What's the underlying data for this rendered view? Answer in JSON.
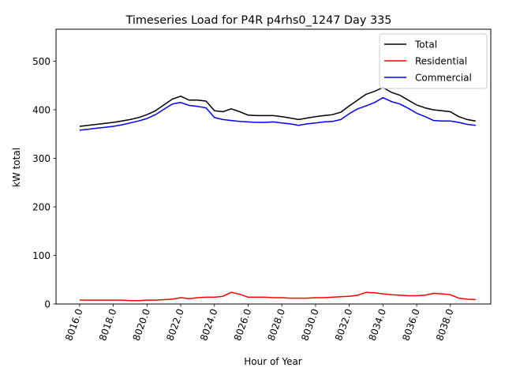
{
  "chart_data": {
    "type": "line",
    "title": "Timeseries Load for P4R p4rhs0_1247  Day 335",
    "xlabel": "Hour of Year",
    "ylabel": "kW total",
    "xlim": [
      8014.6,
      8040.4
    ],
    "ylim": [
      0,
      566
    ],
    "x_ticks": [
      8016,
      8018,
      8020,
      8022,
      8024,
      8026,
      8028,
      8030,
      8032,
      8034,
      8036,
      8038
    ],
    "x_tick_labels": [
      "8016.0",
      "8018.0",
      "8020.0",
      "8022.0",
      "8024.0",
      "8026.0",
      "8028.0",
      "8030.0",
      "8032.0",
      "8034.0",
      "8036.0",
      "8038.0"
    ],
    "y_ticks": [
      0,
      100,
      200,
      300,
      400,
      500
    ],
    "y_tick_labels": [
      "0",
      "100",
      "200",
      "300",
      "400",
      "500"
    ],
    "legend_position": "top-right",
    "x": [
      8016.0,
      8016.5,
      8017.0,
      8017.5,
      8018.0,
      8018.5,
      8019.0,
      8019.5,
      8020.0,
      8020.5,
      8021.0,
      8021.5,
      8022.0,
      8022.5,
      8023.0,
      8023.5,
      8024.0,
      8024.5,
      8025.0,
      8025.5,
      8026.0,
      8026.5,
      8027.0,
      8027.5,
      8028.0,
      8028.5,
      8029.0,
      8029.5,
      8030.0,
      8030.5,
      8031.0,
      8031.5,
      8032.0,
      8032.5,
      8033.0,
      8033.5,
      8034.0,
      8034.5,
      8035.0,
      8035.5,
      8036.0,
      8036.5,
      8037.0,
      8037.5,
      8038.0,
      8038.5,
      8039.0,
      8039.5
    ],
    "series": [
      {
        "name": "Total",
        "color": "#000000",
        "values": [
          366,
          368,
          370,
          372,
          374,
          377,
          380,
          384,
          390,
          398,
          410,
          422,
          428,
          420,
          420,
          418,
          398,
          396,
          402,
          396,
          389,
          388,
          388,
          388,
          386,
          383,
          380,
          383,
          386,
          388,
          390,
          395,
          408,
          420,
          432,
          438,
          446,
          436,
          430,
          420,
          410,
          404,
          400,
          398,
          396,
          386,
          380,
          377
        ]
      },
      {
        "name": "Residential",
        "color": "#ff0000",
        "values": [
          8,
          8,
          8,
          8,
          8,
          8,
          7,
          7,
          8,
          8,
          9,
          10,
          13,
          11,
          13,
          14,
          14,
          16,
          24,
          20,
          14,
          14,
          14,
          13,
          13,
          12,
          12,
          12,
          13,
          13,
          14,
          15,
          16,
          18,
          24,
          23,
          21,
          19,
          18,
          17,
          17,
          18,
          22,
          21,
          19,
          12,
          10,
          9
        ]
      },
      {
        "name": "Commercial",
        "color": "#0000ff",
        "values": [
          358,
          360,
          362,
          364,
          366,
          369,
          373,
          377,
          382,
          390,
          401,
          412,
          415,
          409,
          407,
          404,
          384,
          380,
          378,
          376,
          375,
          374,
          374,
          375,
          373,
          371,
          368,
          371,
          373,
          375,
          376,
          380,
          392,
          402,
          408,
          415,
          425,
          417,
          412,
          403,
          393,
          386,
          378,
          377,
          377,
          374,
          370,
          368
        ]
      }
    ]
  }
}
